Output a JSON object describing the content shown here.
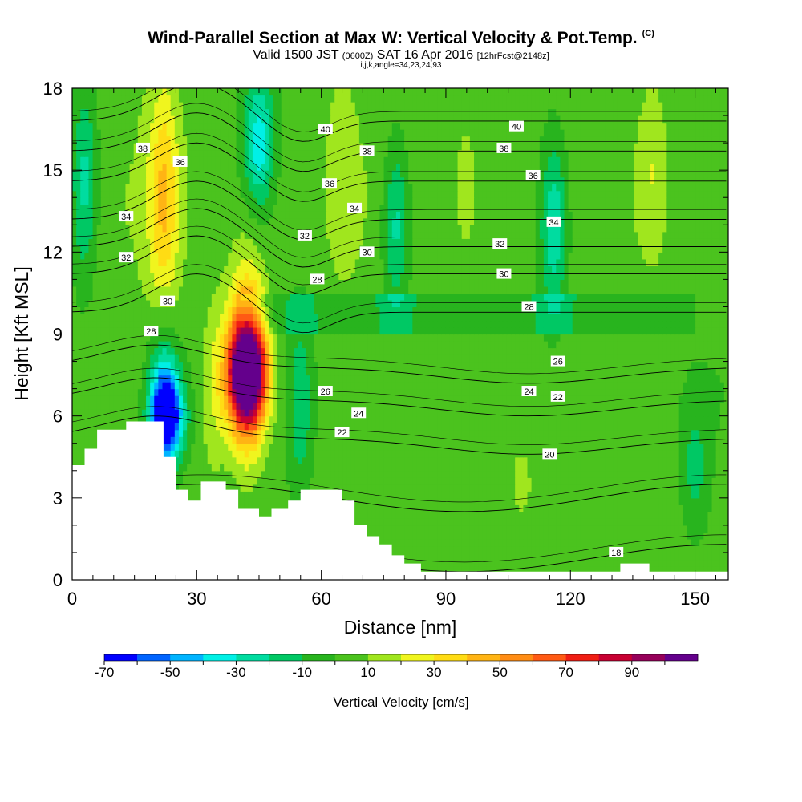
{
  "header": {
    "title": "Wind-Parallel Section at Max W: Vertical Velocity & Pot.Temp.",
    "copyright": "(C)",
    "valid_prefix": "Valid 1500 JST",
    "valid_utc": "(0600Z)",
    "valid_date": "SAT 16 Apr 2016",
    "forecast": "[12hrFcst@2148z]",
    "indices": "i,j,k,angle=34,23,24,93"
  },
  "chart_data": {
    "type": "heatmap",
    "xlabel": "Distance [nm]",
    "ylabel": "Height [Kft MSL]",
    "xlim": [
      0,
      158
    ],
    "ylim": [
      0,
      18
    ],
    "x_ticks": [
      0,
      30,
      60,
      90,
      120,
      150
    ],
    "y_ticks": [
      0,
      3,
      6,
      9,
      12,
      15,
      18
    ],
    "grid": false,
    "colorbar": {
      "title": "Vertical Velocity [cm/s]",
      "tick_labels": [
        "-70",
        "-50",
        "-30",
        "-10",
        "10",
        "30",
        "50",
        "70",
        "90"
      ],
      "levels": [
        -70,
        -60,
        -50,
        -40,
        -30,
        -20,
        -10,
        0,
        10,
        20,
        30,
        40,
        50,
        60,
        70,
        80,
        90,
        100
      ],
      "colors": [
        "#0000ff",
        "#0064ff",
        "#00b4ff",
        "#00f0e6",
        "#00dca0",
        "#00c864",
        "#28b41e",
        "#4bc31e",
        "#a0e61e",
        "#f0f51e",
        "#ffdc14",
        "#ffb414",
        "#ff8c14",
        "#ff5a14",
        "#f01e14",
        "#c80032",
        "#96005a",
        "#64008c"
      ]
    },
    "vertical_velocity_features": [
      {
        "x": 3,
        "y_range": [
          11,
          18
        ],
        "value": -25
      },
      {
        "x": 22,
        "y_range": [
          4,
          9
        ],
        "value": -40
      },
      {
        "x": 23,
        "y_range": [
          5,
          7
        ],
        "value": -55
      },
      {
        "x": 22,
        "y_range": [
          10,
          18
        ],
        "value": 40
      },
      {
        "x": 45,
        "y_range": [
          14,
          18
        ],
        "value": -35
      },
      {
        "x": 42,
        "y_range": [
          5,
          11
        ],
        "value": 75
      },
      {
        "x": 42,
        "y_range": [
          6,
          9
        ],
        "value": 95
      },
      {
        "x": 34,
        "y_range": [
          4,
          10
        ],
        "value": 20
      },
      {
        "x": 55,
        "y_range": [
          3,
          10
        ],
        "value": -15
      },
      {
        "x": 65,
        "y_range": [
          12,
          18
        ],
        "value": 15
      },
      {
        "x": 78,
        "y_range": [
          10,
          16
        ],
        "value": -25
      },
      {
        "x": 95,
        "y_range": [
          12,
          17
        ],
        "value": 15
      },
      {
        "x": 116,
        "y_range": [
          10,
          16
        ],
        "value": -30
      },
      {
        "x": 140,
        "y_range": [
          12,
          18
        ],
        "value": 18
      },
      {
        "x": 108,
        "y_range": [
          2.5,
          5
        ],
        "value": 15
      },
      {
        "x": 90,
        "y_range": [
          0,
          4
        ],
        "value": 8
      },
      {
        "x": 150,
        "y_range": [
          2,
          6
        ],
        "value": -12
      }
    ],
    "potential_temperature_contours": {
      "name": "Pot.Temp.",
      "levels": [
        18,
        20,
        22,
        24,
        26,
        28,
        30,
        32,
        34,
        36,
        38,
        40
      ],
      "labels": [
        {
          "text": "40",
          "x": 61,
          "y": 16.5
        },
        {
          "text": "40",
          "x": 107,
          "y": 16.6
        },
        {
          "text": "38",
          "x": 17,
          "y": 15.8
        },
        {
          "text": "38",
          "x": 71,
          "y": 15.7
        },
        {
          "text": "38",
          "x": 104,
          "y": 15.8
        },
        {
          "text": "36",
          "x": 26,
          "y": 15.3
        },
        {
          "text": "36",
          "x": 62,
          "y": 14.5
        },
        {
          "text": "36",
          "x": 111,
          "y": 14.8
        },
        {
          "text": "34",
          "x": 13,
          "y": 13.3
        },
        {
          "text": "34",
          "x": 68,
          "y": 13.6
        },
        {
          "text": "34",
          "x": 116,
          "y": 13.1
        },
        {
          "text": "32",
          "x": 13,
          "y": 11.8
        },
        {
          "text": "32",
          "x": 56,
          "y": 12.6
        },
        {
          "text": "32",
          "x": 103,
          "y": 12.3
        },
        {
          "text": "30",
          "x": 23,
          "y": 10.2
        },
        {
          "text": "30",
          "x": 71,
          "y": 12.0
        },
        {
          "text": "30",
          "x": 104,
          "y": 11.2
        },
        {
          "text": "28",
          "x": 19,
          "y": 9.1
        },
        {
          "text": "28",
          "x": 59,
          "y": 11.0
        },
        {
          "text": "28",
          "x": 110,
          "y": 10.0
        },
        {
          "text": "26",
          "x": 61,
          "y": 6.9
        },
        {
          "text": "26",
          "x": 117,
          "y": 8.0
        },
        {
          "text": "24",
          "x": 69,
          "y": 6.1
        },
        {
          "text": "24",
          "x": 110,
          "y": 6.9
        },
        {
          "text": "22",
          "x": 65,
          "y": 5.4
        },
        {
          "text": "22",
          "x": 117,
          "y": 6.7
        },
        {
          "text": "20",
          "x": 115,
          "y": 4.6
        },
        {
          "text": "18",
          "x": 131,
          "y": 1.0
        }
      ]
    },
    "terrain_top_kft": [
      [
        0,
        4.2
      ],
      [
        3,
        4.2
      ],
      [
        3,
        4.8
      ],
      [
        6,
        4.8
      ],
      [
        6,
        5.5
      ],
      [
        13,
        5.5
      ],
      [
        13,
        5.8
      ],
      [
        22,
        5.8
      ],
      [
        22,
        4.5
      ],
      [
        25,
        4.5
      ],
      [
        25,
        3.3
      ],
      [
        28,
        3.3
      ],
      [
        28,
        2.9
      ],
      [
        31,
        2.9
      ],
      [
        31,
        3.6
      ],
      [
        37,
        3.6
      ],
      [
        37,
        3.3
      ],
      [
        40,
        3.3
      ],
      [
        40,
        2.6
      ],
      [
        45,
        2.6
      ],
      [
        45,
        2.3
      ],
      [
        48,
        2.3
      ],
      [
        48,
        2.6
      ],
      [
        52,
        2.6
      ],
      [
        52,
        2.9
      ],
      [
        55,
        2.9
      ],
      [
        55,
        3.3
      ],
      [
        65,
        3.3
      ],
      [
        65,
        2.9
      ],
      [
        68,
        2.9
      ],
      [
        68,
        2.0
      ],
      [
        71,
        2.0
      ],
      [
        71,
        1.6
      ],
      [
        74,
        1.6
      ],
      [
        74,
        1.3
      ],
      [
        77,
        1.3
      ],
      [
        77,
        0.9
      ],
      [
        80,
        0.9
      ],
      [
        80,
        0.6
      ],
      [
        84,
        0.6
      ],
      [
        84,
        0.3
      ],
      [
        132,
        0.3
      ],
      [
        132,
        0.6
      ],
      [
        139,
        0.6
      ],
      [
        139,
        0.3
      ],
      [
        158,
        0.3
      ]
    ]
  }
}
